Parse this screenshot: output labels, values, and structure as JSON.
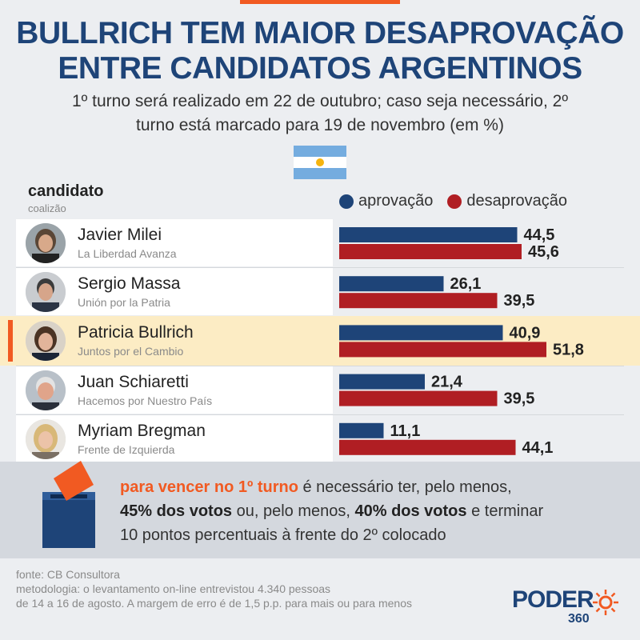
{
  "title_line1": "BULLRICH TEM MAIOR DESAPROVAÇÃO",
  "title_line2": "ENTRE CANDIDATOS ARGENTINOS",
  "subtitle_line1": "1º turno será realizado em 22 de outubro; caso seja necessário, 2º",
  "subtitle_line2": "turno está marcado para 19 de novembro (em %)",
  "column_header": "candidato",
  "column_subheader": "coalizão",
  "legend": [
    {
      "label": "aprovação",
      "color": "#1e4478"
    },
    {
      "label": "desaprovação",
      "color": "#b01e23"
    }
  ],
  "highlight_color": "#f15a22",
  "candidates": [
    {
      "name": "Javier Milei",
      "party": "La Liberdad Avanza"
    },
    {
      "name": "Sergio Massa",
      "party": "Unión por la Patria"
    },
    {
      "name": "Patricia Bullrich",
      "party": "Juntos por el Cambio",
      "highlighted": true
    },
    {
      "name": "Juan Schiaretti",
      "party": "Hacemos por Nuestro País"
    },
    {
      "name": "Myriam Bregman",
      "party": "Frente de Izquierda"
    }
  ],
  "chart_data": {
    "type": "bar",
    "orientation": "horizontal",
    "categories": [
      "Javier Milei",
      "Sergio Massa",
      "Patricia Bullrich",
      "Juan Schiaretti",
      "Myriam Bregman"
    ],
    "series": [
      {
        "name": "aprovação",
        "color": "#1e4478",
        "values": [
          44.5,
          26.1,
          40.9,
          21.4,
          11.1
        ],
        "labels": [
          "44,5",
          "26,1",
          "40,9",
          "21,4",
          "11,1"
        ]
      },
      {
        "name": "desaprovação",
        "color": "#b01e23",
        "values": [
          45.6,
          39.5,
          51.8,
          39.5,
          44.1
        ],
        "labels": [
          "45,6",
          "39,5",
          "51,8",
          "39,5",
          "44,1"
        ]
      }
    ],
    "title": "BULLRICH TEM MAIOR DESAPROVAÇÃO ENTRE CANDIDATOS ARGENTINOS",
    "xlabel": "",
    "ylabel": "",
    "xlim": [
      0,
      100
    ]
  },
  "info": {
    "part1_orange": "para vencer no 1º turno",
    "part2": " é necessário ter, pelo menos,",
    "part3_bold": "45% dos votos",
    "part4": " ou, pelo menos, ",
    "part5_bold": "40% dos votos",
    "part6": " e terminar",
    "line3": "10 pontos percentuais à frente do 2º colocado"
  },
  "footer": {
    "source": "fonte: CB Consultora",
    "method_line1": "metodologia: o levantamento on-line entrevistou 4.340 pessoas",
    "method_line2": "de 14 a 16 de agosto. A margem de erro é de 1,5 p.p. para mais ou para menos"
  },
  "logo": {
    "word": "PODER",
    "number": "360"
  }
}
